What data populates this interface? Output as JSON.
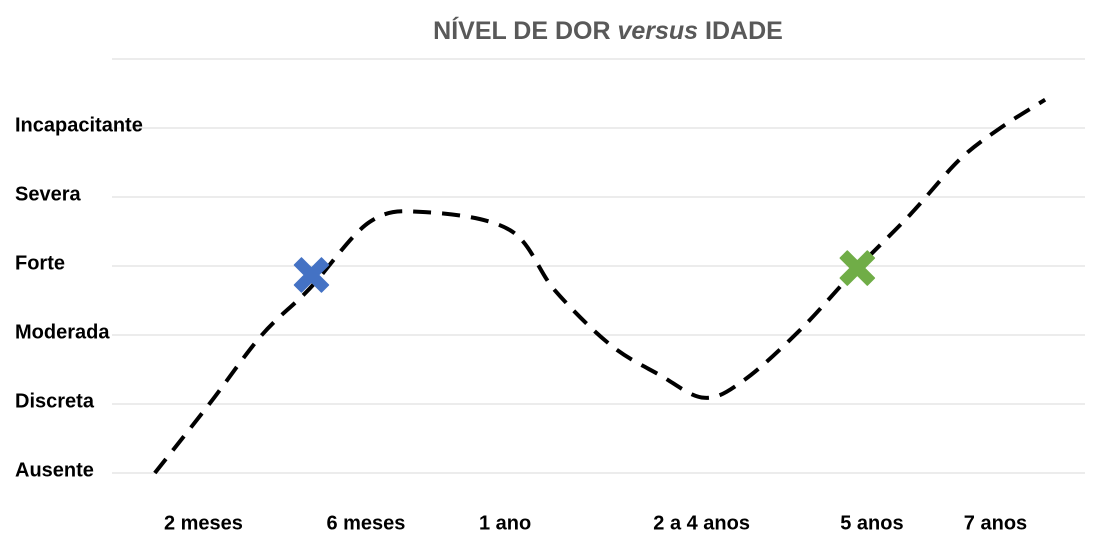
{
  "chart_data": {
    "type": "line",
    "title": [
      "NÍVEL DE DOR",
      "versus",
      "IDADE"
    ],
    "xlim": [
      0,
      10
    ],
    "xticks": [
      {
        "value": 0.94,
        "label": "2 meses"
      },
      {
        "value": 2.61,
        "label": "6 meses"
      },
      {
        "value": 4.04,
        "label": "1 ano"
      },
      {
        "value": 6.06,
        "label": "2 a 4 anos"
      },
      {
        "value": 7.81,
        "label": "5 anos"
      },
      {
        "value": 9.08,
        "label": "7 anos"
      }
    ],
    "ylim": [
      0,
      6
    ],
    "yticks": [
      {
        "value": 0,
        "label": "Ausente"
      },
      {
        "value": 1,
        "label": "Discreta"
      },
      {
        "value": 2,
        "label": "Moderada"
      },
      {
        "value": 3,
        "label": "Forte"
      },
      {
        "value": 4,
        "label": "Severa"
      },
      {
        "value": 5,
        "label": "Incapacitante"
      }
    ],
    "grid": true,
    "series": [
      {
        "color": "#000000",
        "x": [
          0.44,
          1.0,
          1.54,
          2.03,
          2.65,
          3.22,
          4.09,
          4.55,
          5.12,
          5.63,
          6.09,
          6.5,
          7.07,
          7.64,
          8.2,
          8.71,
          9.13,
          9.59
        ],
        "values": [
          0,
          1.0,
          2.0,
          2.67,
          3.64,
          3.78,
          3.52,
          2.65,
          1.86,
          1.42,
          1.09,
          1.35,
          2.07,
          2.94,
          3.74,
          4.54,
          5.0,
          5.41
        ]
      }
    ],
    "markers": [
      {
        "x": 2.05,
        "y": 2.87,
        "color": "#4472c4"
      },
      {
        "x": 7.66,
        "y": 2.97,
        "color": "#70ad47"
      }
    ]
  }
}
